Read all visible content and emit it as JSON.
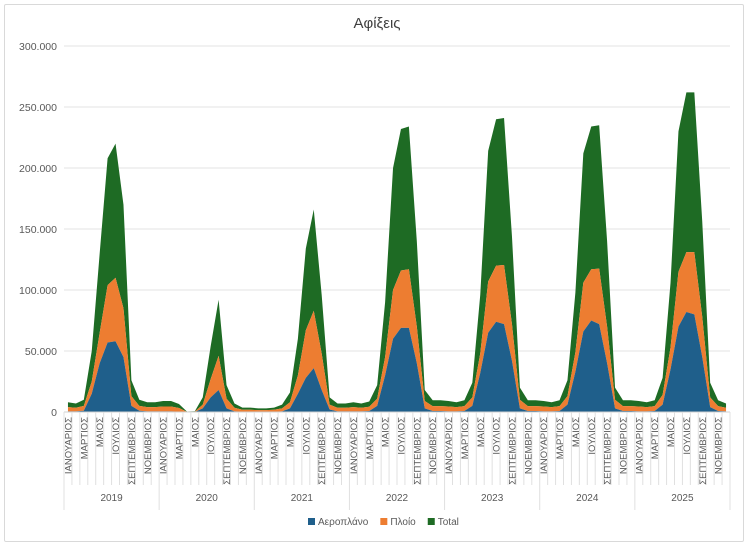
{
  "chart_data": {
    "type": "area",
    "stacked": true,
    "title": "Αφίξεις",
    "xlabel": "",
    "ylabel": "",
    "ylim": [
      0,
      300000
    ],
    "y_ticks": [
      "0",
      "50.000",
      "100.000",
      "150.000",
      "200.000",
      "250.000",
      "300.000"
    ],
    "y_tick_values": [
      0,
      50000,
      100000,
      150000,
      200000,
      250000,
      300000
    ],
    "grid": true,
    "legend_position": "bottom",
    "years": [
      "2019",
      "2020",
      "2021",
      "2022",
      "2023",
      "2024",
      "2025"
    ],
    "month_labels": [
      "ΙΑΝΟΥΑΡΙΟΣ",
      "ΜΑΡΤΙΟΣ",
      "ΜΑΙΟΣ",
      "ΙΟΥΛΙΟΣ",
      "ΣΕΠΤΕΜΒΡΙΟΣ",
      "ΝΟΕΜΒΡΙΟΣ"
    ],
    "series": [
      {
        "name": "Αεροπλάνο",
        "color": "#1f5f8b",
        "values": [
          500,
          500,
          1000,
          15000,
          40000,
          57000,
          58000,
          45000,
          5000,
          1000,
          500,
          500,
          500,
          500,
          300,
          0,
          0,
          3000,
          12000,
          18000,
          3000,
          500,
          300,
          300,
          300,
          300,
          300,
          500,
          3000,
          15000,
          28000,
          36000,
          18000,
          2000,
          500,
          500,
          500,
          500,
          800,
          5000,
          30000,
          60000,
          69000,
          69000,
          40000,
          3000,
          800,
          800,
          500,
          500,
          800,
          5000,
          32000,
          65000,
          74000,
          72000,
          42000,
          3000,
          800,
          800,
          500,
          500,
          800,
          6000,
          33000,
          66000,
          75000,
          72000,
          40000,
          3000,
          800,
          800,
          500,
          500,
          800,
          6000,
          35000,
          70000,
          82000,
          80000,
          45000,
          4000,
          800,
          500
        ]
      },
      {
        "name": "Πλοίο",
        "color": "#ed7d31",
        "values": [
          3500,
          3000,
          4000,
          10000,
          25000,
          47000,
          52000,
          40000,
          8000,
          4000,
          3500,
          3500,
          4000,
          4000,
          3000,
          200,
          300,
          3000,
          15000,
          28000,
          8000,
          3000,
          1500,
          1500,
          1200,
          1200,
          1500,
          2500,
          5000,
          15000,
          39000,
          47000,
          30000,
          4000,
          3000,
          3000,
          3500,
          3000,
          3500,
          6000,
          15000,
          40000,
          47000,
          48000,
          30000,
          6000,
          4000,
          4000,
          4000,
          3500,
          4000,
          7000,
          16000,
          42000,
          46000,
          48500,
          30000,
          7000,
          4000,
          4000,
          4000,
          3500,
          4000,
          7000,
          16000,
          40000,
          42000,
          45500,
          30000,
          7000,
          4000,
          4000,
          4000,
          3500,
          4000,
          8000,
          18000,
          45000,
          49000,
          51000,
          33000,
          8000,
          4000,
          3000
        ]
      },
      {
        "name": "Total",
        "color": "#1e6b24",
        "computed": "Αεροπλάνο + Πλοίο"
      }
    ]
  }
}
